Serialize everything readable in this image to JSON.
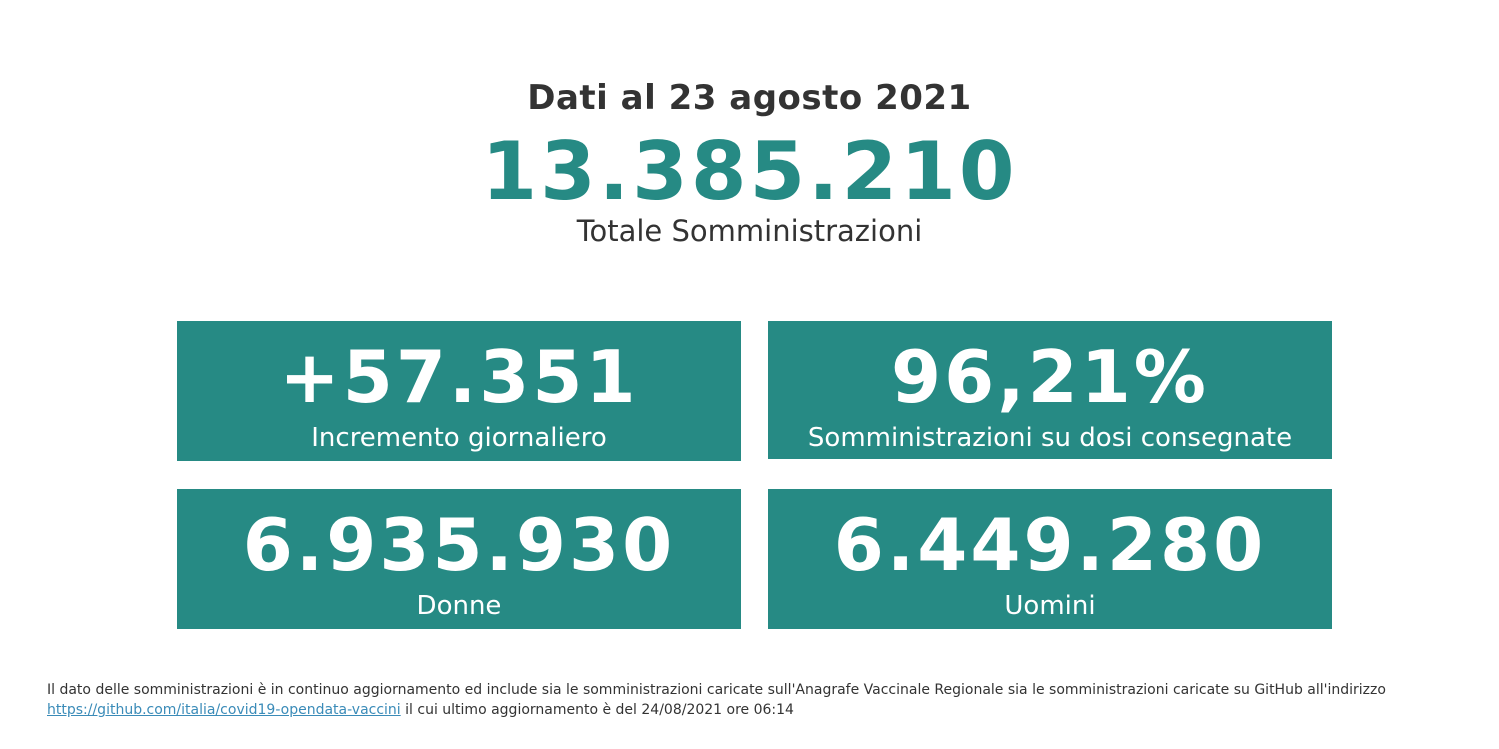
{
  "header": {
    "date_line": "Dati al 23 agosto 2021",
    "total_value": "13.385.210",
    "total_label": "Totale Somministrazioni"
  },
  "cards": [
    {
      "value": "+57.351",
      "label": "Incremento giornaliero"
    },
    {
      "value": "96,21%",
      "label": "Somministrazioni su dosi consegnate"
    },
    {
      "value": "6.935.930",
      "label": "Donne"
    },
    {
      "value": "6.449.280",
      "label": "Uomini"
    }
  ],
  "footnote": {
    "text_before": "Il dato delle somministrazioni è in continuo aggiornamento ed include sia le somministrazioni caricate sull'Anagrafe Vaccinale Regionale sia le somministrazioni caricate su GitHub all'indirizzo ",
    "link_text": "https://github.com/italia/covid19-opendata-vaccini",
    "text_after": " il cui ultimo aggiornamento è del 24/08/2021 ore 06:14"
  },
  "colors": {
    "accent": "#268a84",
    "text": "#333333",
    "link": "#3a8bb8"
  }
}
